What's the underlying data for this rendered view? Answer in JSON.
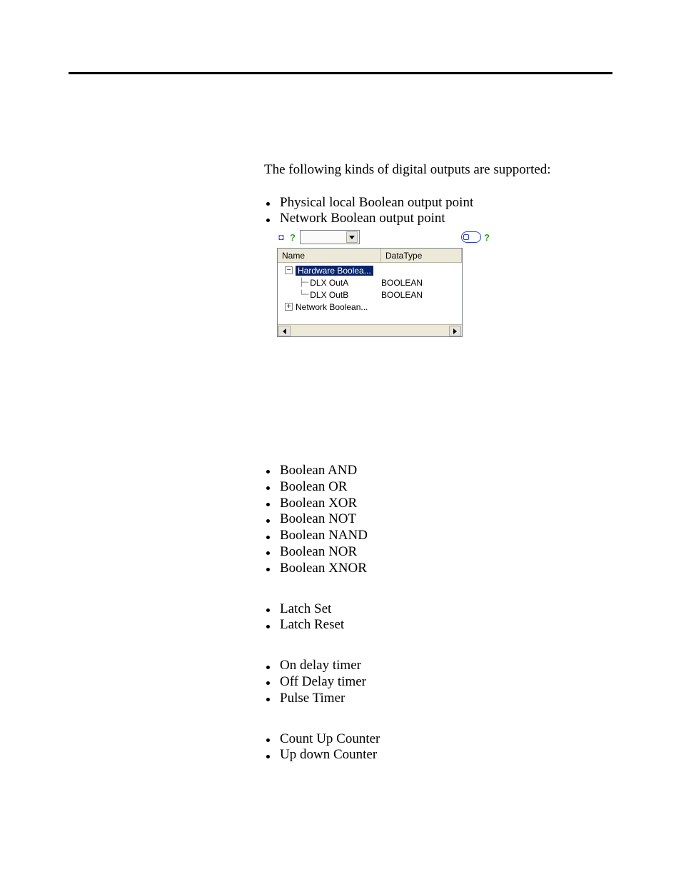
{
  "intro": "The following kinds of digital outputs are supported:",
  "outputs": [
    "Physical local Boolean output point",
    "Network Boolean output point"
  ],
  "dialog": {
    "columns": {
      "name": "Name",
      "datatype": "DataType"
    },
    "tree": {
      "root_selected": "Hardware Boolea...",
      "children": [
        {
          "name": "DLX OutA",
          "datatype": "BOOLEAN"
        },
        {
          "name": "DLX OutB",
          "datatype": "BOOLEAN"
        }
      ],
      "sibling_collapsed": "Network Boolean..."
    },
    "colors": {
      "panel_border": "#7b7f84",
      "header_bg": "#ece9d8",
      "selection_bg": "#0a246a",
      "selection_fg": "#ffffff",
      "accent_blue": "#2a3fd8",
      "help_green": "#2ca02c"
    }
  },
  "groups": {
    "boolean": [
      "Boolean AND",
      "Boolean OR",
      "Boolean XOR",
      "Boolean NOT",
      "Boolean NAND",
      "Boolean NOR",
      "Boolean XNOR"
    ],
    "latch": [
      "Latch Set",
      "Latch Reset"
    ],
    "timer": [
      "On delay timer",
      "Off Delay timer",
      "Pulse Timer"
    ],
    "counter": [
      "Count Up Counter",
      "Up down Counter"
    ]
  }
}
